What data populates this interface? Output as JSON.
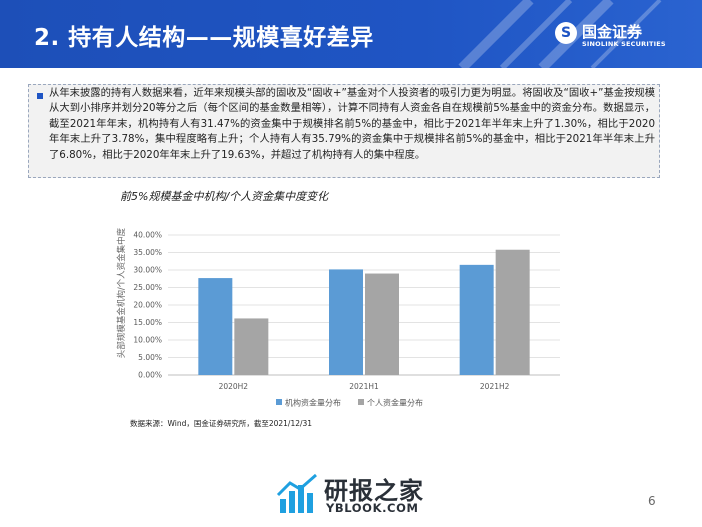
{
  "header": {
    "title": "2. 持有人结构——规模喜好差异",
    "logo_cn": "国金证券",
    "logo_en": "SINOLINK SECURITIES",
    "logo_glyph": "S"
  },
  "body": {
    "paragraph": "从年末披露的持有人数据来看，近年来规模头部的固收及“固收+”基金对个人投资者的吸引力更为明显。将固收及“固收+”基金按规模从大到小排序并划分20等分之后（每个区间的基金数量相等），计算不同持有人资金各自在规模前5%基金中的资金分布。数据显示，截至2021年年末，机构持有人有31.47%的资金集中于规模排名前5%的基金中，相比于2021年半年末上升了1.30%，相比于2020年年末上升了3.78%，集中程度略有上升；个人持有人有35.79%的资金集中于规模排名前5%的基金中，相比于2021年半年末上升了6.80%，相比于2020年年末上升了19.63%，并超过了机构持有人的集中程度。"
  },
  "chart_title": "前5%规模基金中机构/个人资金集中度变化",
  "chart_data": {
    "type": "bar",
    "title": "前5%规模基金中机构/个人资金集中度变化",
    "categories": [
      "2020H2",
      "2021H1",
      "2021H2"
    ],
    "series": [
      {
        "name": "机构资金量分布",
        "values": [
          27.69,
          30.17,
          31.47
        ],
        "color": "#5b9bd5"
      },
      {
        "name": "个人资金量分布",
        "values": [
          16.16,
          28.99,
          35.79
        ],
        "color": "#a5a5a5"
      }
    ],
    "ylabel": "头部规模基金机构/个人资金集中度",
    "ylim": [
      0,
      40
    ],
    "yticks": [
      "0.00%",
      "5.00%",
      "10.00%",
      "15.00%",
      "20.00%",
      "25.00%",
      "30.00%",
      "35.00%",
      "40.00%"
    ],
    "grid": true,
    "legend": "bottom"
  },
  "source": "数据来源：Wind，国金证券研究所，截至2021/12/31",
  "watermark": {
    "cn": "研报之家",
    "en": "YBLOOK.COM"
  },
  "page_number": "6",
  "colors": {
    "brand_blue": "#1f55c4",
    "institution_bar": "#5b9bd5",
    "individual_bar": "#a5a5a5"
  }
}
